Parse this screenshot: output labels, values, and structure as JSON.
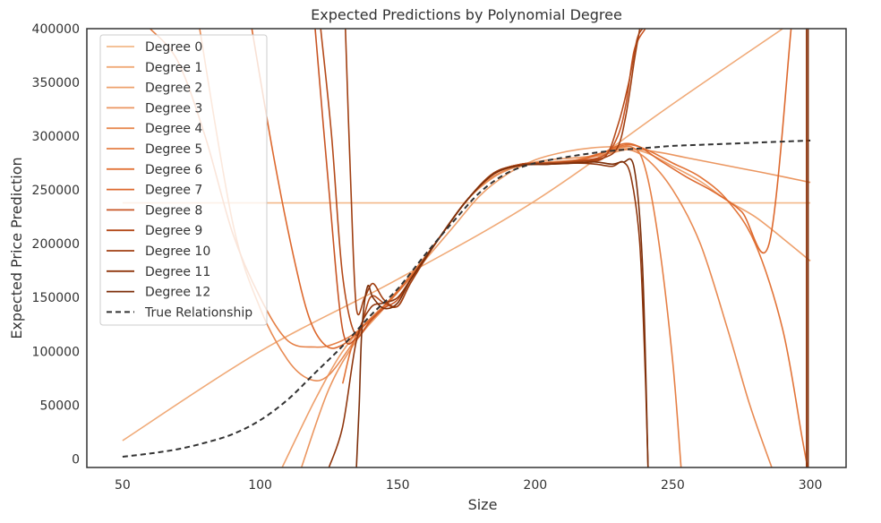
{
  "chart_data": {
    "type": "line",
    "title": "Expected Predictions by Polynomial Degree",
    "xlabel": "Size",
    "ylabel": "Expected Price Prediction",
    "xlim": [
      37,
      313
    ],
    "ylim": [
      -8000,
      400000
    ],
    "xticks": [
      "50",
      "100",
      "150",
      "200",
      "250",
      "300"
    ],
    "yticks": [
      "0",
      "50000",
      "100000",
      "150000",
      "200000",
      "250000",
      "300000",
      "350000",
      "400000"
    ],
    "grid": false,
    "legend_position": "top-left",
    "series": [
      {
        "name": "Degree 0",
        "color": "#f3b98a",
        "dashed": false,
        "x": [
          50,
          300
        ],
        "y": [
          238000,
          238000
        ]
      },
      {
        "name": "Degree 1",
        "color": "#f0aa78",
        "dashed": false,
        "x": [
          50,
          100,
          150,
          200,
          250,
          290
        ],
        "y": [
          17000,
          100000,
          167000,
          240000,
          330000,
          400000
        ]
      },
      {
        "name": "Degree 2",
        "color": "#eea06c",
        "dashed": false,
        "x": [
          108,
          120,
          130,
          140,
          150,
          160,
          170,
          180,
          190,
          200,
          210,
          220,
          230,
          240,
          250,
          260,
          270,
          280,
          290,
          300
        ],
        "y": [
          -8000,
          55000,
          100000,
          130000,
          155000,
          185000,
          215000,
          245000,
          265000,
          278000,
          285000,
          289000,
          290000,
          285000,
          272000,
          258000,
          240000,
          225000,
          205000,
          184000
        ]
      },
      {
        "name": "Degree 3",
        "color": "#eb9660",
        "dashed": false,
        "x": [
          115,
          125,
          135,
          145,
          155,
          165,
          175,
          185,
          195,
          205,
          215,
          225,
          235,
          245,
          255,
          265,
          275,
          285,
          300
        ],
        "y": [
          -8000,
          65000,
          110000,
          140000,
          170000,
          205000,
          240000,
          262000,
          273000,
          278000,
          280000,
          283000,
          288000,
          285000,
          280000,
          275000,
          270000,
          265000,
          257000
        ]
      },
      {
        "name": "Degree 4",
        "color": "#e88a52",
        "dashed": false,
        "x": [
          78,
          90,
          100,
          110,
          118,
          125,
          135,
          145,
          155,
          165,
          175,
          185,
          195,
          205,
          215,
          225,
          232,
          240,
          250,
          260,
          270,
          278,
          286
        ],
        "y": [
          400000,
          220000,
          140000,
          92000,
          74000,
          78000,
          112000,
          142000,
          170000,
          205000,
          240000,
          263000,
          273000,
          276000,
          278000,
          283000,
          288000,
          280000,
          250000,
          200000,
          120000,
          50000,
          -8000
        ]
      },
      {
        "name": "Degree 5",
        "color": "#e57f45",
        "dashed": false,
        "x": [
          60,
          70,
          80,
          90,
          100,
          110,
          120,
          127,
          135,
          145,
          155,
          165,
          175,
          185,
          195,
          205,
          215,
          225,
          235,
          240,
          245,
          250,
          253
        ],
        "y": [
          400000,
          370000,
          300000,
          210000,
          150000,
          110000,
          104000,
          107000,
          118000,
          142000,
          172000,
          205000,
          240000,
          265000,
          273000,
          275000,
          278000,
          285000,
          290000,
          270000,
          200000,
          90000,
          -8000
        ]
      },
      {
        "name": "Degree 6",
        "color": "#e27438",
        "dashed": false,
        "x": [
          130,
          135,
          145,
          155,
          165,
          175,
          185,
          195,
          205,
          215,
          225,
          233,
          240,
          250,
          260,
          270,
          280,
          290,
          297,
          299
        ],
        "y": [
          70000,
          115000,
          142000,
          170000,
          205000,
          240000,
          265000,
          274000,
          275000,
          277000,
          285000,
          292000,
          288000,
          275000,
          262000,
          240000,
          200000,
          120000,
          20000,
          -8000
        ]
      },
      {
        "name": "Degree 7",
        "color": "#dd692e",
        "dashed": false,
        "x": [
          97,
          105,
          112,
          118,
          124,
          130,
          137,
          145,
          155,
          165,
          175,
          185,
          195,
          205,
          215,
          225,
          232,
          238,
          245,
          255,
          265,
          275,
          285,
          293
        ],
        "y": [
          400000,
          280000,
          190000,
          130000,
          105000,
          106000,
          122000,
          142000,
          170000,
          205000,
          240000,
          265000,
          274000,
          275000,
          277000,
          285000,
          293000,
          290000,
          278000,
          262000,
          248000,
          230000,
          200000,
          400000
        ]
      },
      {
        "name": "Degree 8",
        "color": "#c85524",
        "dashed": false,
        "x": [
          120,
          125,
          130,
          135,
          140,
          145,
          150,
          155,
          165,
          175,
          185,
          195,
          205,
          215,
          225,
          230,
          233,
          236,
          240
        ],
        "y": [
          400000,
          250000,
          120000,
          112000,
          128000,
          140000,
          148000,
          168000,
          205000,
          240000,
          265000,
          274000,
          275000,
          277000,
          282000,
          300000,
          330000,
          380000,
          400000
        ]
      },
      {
        "name": "Degree 9",
        "color": "#b44a1a",
        "dashed": false,
        "x": [
          122,
          126,
          130,
          135,
          140,
          145,
          150,
          155,
          165,
          175,
          185,
          195,
          205,
          215,
          225,
          230,
          234,
          237,
          239
        ],
        "y": [
          400000,
          300000,
          170000,
          115000,
          150000,
          145000,
          142000,
          165000,
          205000,
          240000,
          265000,
          274000,
          275000,
          277000,
          280000,
          310000,
          350000,
          390000,
          400000
        ]
      },
      {
        "name": "Degree 10",
        "color": "#a03f12",
        "dashed": false,
        "x": [
          131,
          133,
          135,
          138,
          141,
          145,
          150,
          155,
          165,
          175,
          185,
          195,
          205,
          215,
          225,
          230,
          233,
          236,
          238
        ],
        "y": [
          400000,
          250000,
          140000,
          150000,
          163000,
          148000,
          142000,
          165000,
          205000,
          240000,
          266000,
          273000,
          274000,
          276000,
          280000,
          290000,
          320000,
          370000,
          400000
        ]
      },
      {
        "name": "Degree 11",
        "color": "#8f360d",
        "dashed": false,
        "x": [
          125,
          130,
          135,
          140,
          145,
          150,
          155,
          165,
          175,
          185,
          195,
          205,
          215,
          222,
          228,
          232,
          235,
          238,
          240,
          241
        ],
        "y": [
          -8000,
          30000,
          110000,
          140000,
          145000,
          150000,
          168000,
          205000,
          240000,
          265000,
          273000,
          274000,
          275000,
          274000,
          272000,
          276000,
          260000,
          200000,
          80000,
          -8000
        ]
      },
      {
        "name": "Degree 12",
        "color": "#7d2f0a",
        "dashed": false,
        "x": [
          135,
          136,
          137,
          139,
          141,
          145,
          150,
          155,
          165,
          175,
          185,
          195,
          205,
          215,
          222,
          228,
          232,
          236,
          239,
          241
        ],
        "y": [
          -8000,
          50000,
          120000,
          160000,
          150000,
          140000,
          145000,
          168000,
          205000,
          240000,
          265000,
          273000,
          274000,
          275000,
          276000,
          274000,
          276000,
          270000,
          180000,
          -8000
        ]
      },
      {
        "name": "True Relationship",
        "color": "#333333",
        "dashed": true,
        "x": [
          50,
          60,
          70,
          80,
          90,
          100,
          110,
          120,
          130,
          140,
          150,
          160,
          170,
          180,
          190,
          200,
          210,
          220,
          230,
          240,
          250,
          260,
          270,
          280,
          290,
          300
        ],
        "y": [
          2000,
          5000,
          9000,
          15000,
          23000,
          36000,
          55000,
          80000,
          105000,
          133000,
          158000,
          190000,
          220000,
          248000,
          266000,
          275000,
          280000,
          284000,
          287000,
          289000,
          291000,
          292000,
          293000,
          294000,
          295000,
          296000
        ]
      }
    ],
    "extra_lines": [
      {
        "series_index": 11,
        "x": [
          298.6,
          298.6
        ],
        "y": [
          -8000,
          400000
        ]
      },
      {
        "series_index": 12,
        "x": [
          299.2,
          299.2
        ],
        "y": [
          -8000,
          400000
        ]
      }
    ]
  }
}
